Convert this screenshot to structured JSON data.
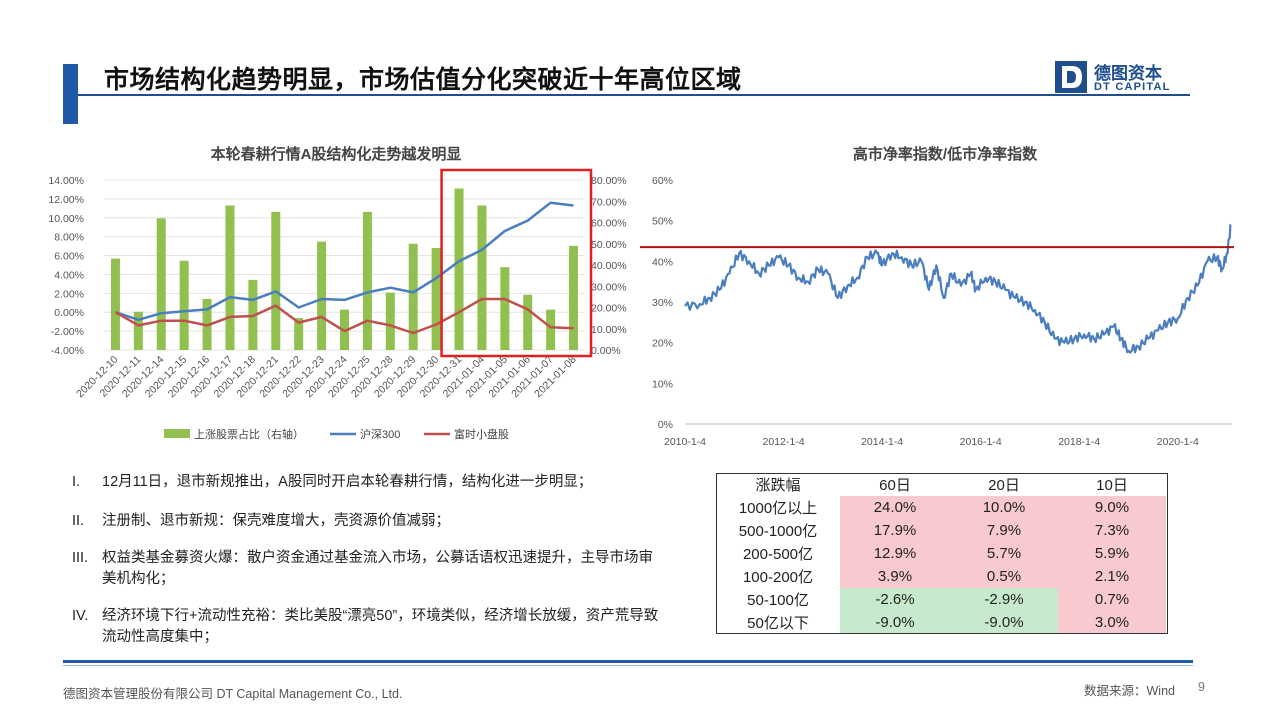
{
  "header": {
    "title": "市场结构化趋势明显，市场估值分化突破近十年高位区域",
    "logo_cn": "德图资本",
    "logo_en": "DT CAPITAL",
    "logo_letter": "D"
  },
  "chart_data": [
    {
      "type": "bar",
      "title": "本轮春耕行情A股结构化走势越发明显",
      "categories": [
        "2020-12-10",
        "2020-12-11",
        "2020-12-14",
        "2020-12-15",
        "2020-12-16",
        "2020-12-17",
        "2020-12-18",
        "2020-12-21",
        "2020-12-22",
        "2020-12-23",
        "2020-12-24",
        "2020-12-25",
        "2020-12-28",
        "2020-12-29",
        "2020-12-30",
        "2020-12-31",
        "2021-01-04",
        "2021-01-05",
        "2021-01-06",
        "2021-01-07",
        "2021-01-08"
      ],
      "y_left": {
        "ticks": [
          "-4.00%",
          "-2.00%",
          "0.00%",
          "2.00%",
          "4.00%",
          "6.00%",
          "8.00%",
          "10.00%",
          "12.00%",
          "14.00%"
        ],
        "range": [
          -4,
          14
        ]
      },
      "y_right": {
        "ticks": [
          "0.00%",
          "10.00%",
          "20.00%",
          "30.00%",
          "40.00%",
          "50.00%",
          "60.00%",
          "70.00%",
          "80.00%"
        ],
        "range": [
          0,
          80
        ]
      },
      "series": [
        {
          "name": "上涨股票占比（右轴）",
          "type": "bar",
          "axis": "right",
          "color": "#92c050",
          "values": [
            43,
            18,
            62,
            42,
            24,
            68,
            33,
            65,
            15,
            51,
            19,
            65,
            27,
            50,
            48,
            76,
            68,
            39,
            26,
            19,
            49
          ]
        },
        {
          "name": "沪深300",
          "type": "line",
          "axis": "left",
          "color": "#4a7ebf",
          "values": [
            0.0,
            -0.8,
            -0.1,
            0.1,
            0.3,
            1.6,
            1.3,
            2.2,
            0.5,
            1.4,
            1.3,
            2.1,
            2.6,
            2.1,
            3.6,
            5.4,
            6.6,
            8.6,
            9.7,
            11.6,
            11.3
          ]
        },
        {
          "name": "富时小盘股",
          "type": "line",
          "axis": "left",
          "color": "#c0504d",
          "values": [
            0.0,
            -1.4,
            -0.9,
            -0.9,
            -1.4,
            -0.5,
            -0.4,
            0.7,
            -1.1,
            -0.5,
            -2.0,
            -0.9,
            -1.4,
            -2.2,
            -1.3,
            0.0,
            1.4,
            1.4,
            0.3,
            -1.6,
            -1.7
          ]
        }
      ],
      "highlight": {
        "from": "2020-12-31",
        "to": "2021-01-08",
        "color": "#e02020"
      }
    },
    {
      "type": "line",
      "title": "高市净率指数/低市净率指数",
      "x_ticks": [
        "2010-1-4",
        "2012-1-4",
        "2014-1-4",
        "2016-1-4",
        "2018-1-4",
        "2020-1-4"
      ],
      "y_ticks": [
        "0%",
        "10%",
        "20%",
        "30%",
        "40%",
        "50%",
        "60%"
      ],
      "ylim": [
        0,
        60
      ],
      "color": "#4a7ebf",
      "reference_line": {
        "value": 43.5,
        "color": "#b01010"
      },
      "series": [
        {
          "x": 2010.0,
          "y": 29
        },
        {
          "x": 2010.3,
          "y": 29.5
        },
        {
          "x": 2010.5,
          "y": 31
        },
        {
          "x": 2010.7,
          "y": 33
        },
        {
          "x": 2010.9,
          "y": 37
        },
        {
          "x": 2011.1,
          "y": 42
        },
        {
          "x": 2011.3,
          "y": 40
        },
        {
          "x": 2011.5,
          "y": 37
        },
        {
          "x": 2011.7,
          "y": 39
        },
        {
          "x": 2011.9,
          "y": 41
        },
        {
          "x": 2012.1,
          "y": 39
        },
        {
          "x": 2012.3,
          "y": 36
        },
        {
          "x": 2012.5,
          "y": 35
        },
        {
          "x": 2012.7,
          "y": 38
        },
        {
          "x": 2012.9,
          "y": 37
        },
        {
          "x": 2013.1,
          "y": 31
        },
        {
          "x": 2013.3,
          "y": 34
        },
        {
          "x": 2013.5,
          "y": 36
        },
        {
          "x": 2013.7,
          "y": 41
        },
        {
          "x": 2013.9,
          "y": 42
        },
        {
          "x": 2014.0,
          "y": 39
        },
        {
          "x": 2014.2,
          "y": 42
        },
        {
          "x": 2014.4,
          "y": 41
        },
        {
          "x": 2014.6,
          "y": 39
        },
        {
          "x": 2014.8,
          "y": 40
        },
        {
          "x": 2014.95,
          "y": 33
        },
        {
          "x": 2015.1,
          "y": 39
        },
        {
          "x": 2015.25,
          "y": 31
        },
        {
          "x": 2015.4,
          "y": 37
        },
        {
          "x": 2015.6,
          "y": 34
        },
        {
          "x": 2015.8,
          "y": 37
        },
        {
          "x": 2015.9,
          "y": 33
        },
        {
          "x": 2016.1,
          "y": 36
        },
        {
          "x": 2016.3,
          "y": 35
        },
        {
          "x": 2016.5,
          "y": 33
        },
        {
          "x": 2016.7,
          "y": 31
        },
        {
          "x": 2016.9,
          "y": 30
        },
        {
          "x": 2017.1,
          "y": 28
        },
        {
          "x": 2017.3,
          "y": 25
        },
        {
          "x": 2017.5,
          "y": 21
        },
        {
          "x": 2017.7,
          "y": 20
        },
        {
          "x": 2017.9,
          "y": 21
        },
        {
          "x": 2018.1,
          "y": 22
        },
        {
          "x": 2018.3,
          "y": 21
        },
        {
          "x": 2018.5,
          "y": 22
        },
        {
          "x": 2018.7,
          "y": 24
        },
        {
          "x": 2018.85,
          "y": 21
        },
        {
          "x": 2019.0,
          "y": 18
        },
        {
          "x": 2019.2,
          "y": 19
        },
        {
          "x": 2019.4,
          "y": 21
        },
        {
          "x": 2019.6,
          "y": 23
        },
        {
          "x": 2019.8,
          "y": 25
        },
        {
          "x": 2020.0,
          "y": 26
        },
        {
          "x": 2020.2,
          "y": 31
        },
        {
          "x": 2020.4,
          "y": 34
        },
        {
          "x": 2020.6,
          "y": 40
        },
        {
          "x": 2020.8,
          "y": 41
        },
        {
          "x": 2020.9,
          "y": 38
        },
        {
          "x": 2021.0,
          "y": 42
        },
        {
          "x": 2021.08,
          "y": 49
        }
      ]
    }
  ],
  "chart_legend": [
    "上涨股票占比（右轴）",
    "沪深300",
    "富时小盘股"
  ],
  "bullets": [
    {
      "num": "I.",
      "text": "12月11日，退市新规推出，A股同时开启本轮春耕行情，结构化进一步明显；"
    },
    {
      "num": "II.",
      "text": "注册制、退市新规：保壳难度增大，壳资源价值减弱；"
    },
    {
      "num": "III.",
      "text": "权益类基金募资火爆：散户资金通过基金流入市场，公募话语权迅速提升，主导市场审美机构化；"
    },
    {
      "num": "IV.",
      "text": "经济环境下行+流动性充裕：类比美股“漂亮50”，环境类似，经济增长放缓，资产荒导致流动性高度集中；"
    }
  ],
  "table": {
    "headers": [
      "涨跌幅",
      "60日",
      "20日",
      "10日"
    ],
    "rows": [
      {
        "label": "1000亿以上",
        "values": [
          "24.0%",
          "10.0%",
          "9.0%"
        ]
      },
      {
        "label": "500-1000亿",
        "values": [
          "17.9%",
          "7.9%",
          "7.3%"
        ]
      },
      {
        "label": "200-500亿",
        "values": [
          "12.9%",
          "5.7%",
          "5.9%"
        ]
      },
      {
        "label": "100-200亿",
        "values": [
          "3.9%",
          "0.5%",
          "2.1%"
        ]
      },
      {
        "label": "50-100亿",
        "values": [
          "-2.6%",
          "-2.9%",
          "0.7%"
        ]
      },
      {
        "label": "50亿以下",
        "values": [
          "-9.0%",
          "-9.0%",
          "3.0%"
        ]
      }
    ],
    "positive_color": "#f8c9cf",
    "negative_color": "#c8eacc"
  },
  "footer": {
    "company": "德图资本管理股份有限公司  DT Capital Management  Co., Ltd.",
    "source": "数据来源：Wind",
    "page": "9"
  }
}
